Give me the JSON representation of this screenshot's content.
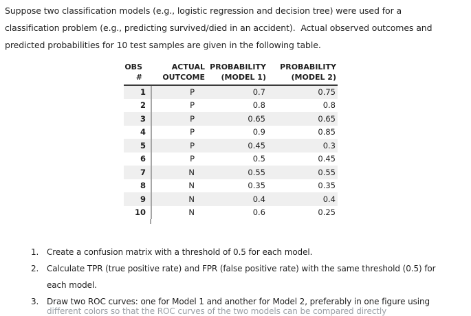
{
  "intro": {
    "lines": [
      "Suppose two classification models (e.g., logistic regression and decision tree) were used for a",
      "classification problem (e.g., predicting survived/died in an accident).  Actual observed outcomes and",
      "predicted probabilities for 10 test samples are given in the following table."
    ]
  },
  "table": {
    "headers": [
      {
        "line1": "OBS",
        "line2": "#"
      },
      {
        "line1": "ACTUAL",
        "line2": "OUTCOME"
      },
      {
        "line1": "PROBABILITY",
        "line2": "(MODEL 1)"
      },
      {
        "line1": "PROBABILITY",
        "line2": "(MODEL 2)"
      }
    ],
    "rows": [
      {
        "obs": "1",
        "outcome": "P",
        "model1": "0.7",
        "model2": "0.75"
      },
      {
        "obs": "2",
        "outcome": "P",
        "model1": "0.8",
        "model2": "0.8"
      },
      {
        "obs": "3",
        "outcome": "P",
        "model1": "0.65",
        "model2": "0.65"
      },
      {
        "obs": "4",
        "outcome": "P",
        "model1": "0.9",
        "model2": "0.85"
      },
      {
        "obs": "5",
        "outcome": "P",
        "model1": "0.45",
        "model2": "0.3"
      },
      {
        "obs": "6",
        "outcome": "P",
        "model1": "0.5",
        "model2": "0.45"
      },
      {
        "obs": "7",
        "outcome": "N",
        "model1": "0.55",
        "model2": "0.55"
      },
      {
        "obs": "8",
        "outcome": "N",
        "model1": "0.35",
        "model2": "0.35"
      },
      {
        "obs": "9",
        "outcome": "N",
        "model1": "0.4",
        "model2": "0.4"
      },
      {
        "obs": "10",
        "outcome": "N",
        "model1": "0.6",
        "model2": "0.25"
      }
    ]
  },
  "tasks": {
    "items": [
      {
        "number": "1.",
        "lines": [
          "Create a confusion matrix with a threshold of 0.5 for each model."
        ]
      },
      {
        "number": "2.",
        "lines": [
          "Calculate TPR (true positive rate) and FPR (false positive rate) with the same threshold (0.5) for",
          "each model."
        ]
      },
      {
        "number": "3.",
        "lines": [
          "Draw two ROC curves: one for Model 1 and another for Model 2, preferably in one figure using"
        ]
      }
    ],
    "clipped_continuation": "different colors so that the ROC curves of the two models can be compared directly"
  },
  "colors": {
    "background": "#ffffff",
    "text": "#1f1f1f",
    "row_shade": "#efefef",
    "header_rule": "#3b3b3b",
    "column_divider": "#a6a6a6",
    "clipped_text": "#9aa0a6"
  }
}
